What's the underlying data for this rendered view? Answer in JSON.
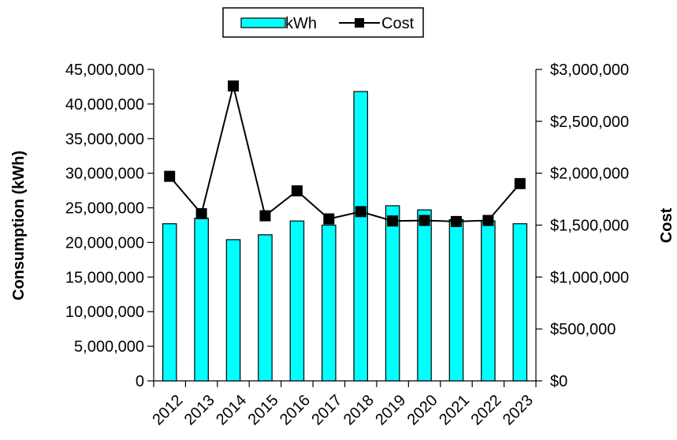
{
  "chart_data": {
    "type": "bar",
    "categories": [
      "2012",
      "2013",
      "2014",
      "2015",
      "2016",
      "2017",
      "2018",
      "2019",
      "2020",
      "2021",
      "2022",
      "2023"
    ],
    "series": [
      {
        "name": "kWh",
        "type": "bar",
        "axis": "left",
        "color": "#00ffff",
        "values": [
          22700000,
          23500000,
          20400000,
          21100000,
          23100000,
          22500000,
          41800000,
          25300000,
          24700000,
          23300000,
          23100000,
          22700000
        ]
      },
      {
        "name": "Cost",
        "type": "line",
        "axis": "right",
        "color": "#000000",
        "values": [
          1970000,
          1610000,
          2840000,
          1590000,
          1830000,
          1560000,
          1630000,
          1540000,
          1545000,
          1535000,
          1545000,
          1900000
        ]
      }
    ],
    "ylabel": "Consumption (kWh)",
    "y2label": "Cost",
    "ylim": [
      0,
      45000000
    ],
    "y2lim": [
      0,
      3000000
    ],
    "yticks": [
      "0",
      "5,000,000",
      "10,000,000",
      "15,000,000",
      "20,000,000",
      "25,000,000",
      "30,000,000",
      "35,000,000",
      "40,000,000",
      "45,000,000"
    ],
    "y2ticks": [
      "$0",
      "$500,000",
      "$1,000,000",
      "$1,500,000",
      "$2,000,000",
      "$2,500,000",
      "$3,000,000"
    ],
    "legend_position": "top-center",
    "grid": false
  }
}
